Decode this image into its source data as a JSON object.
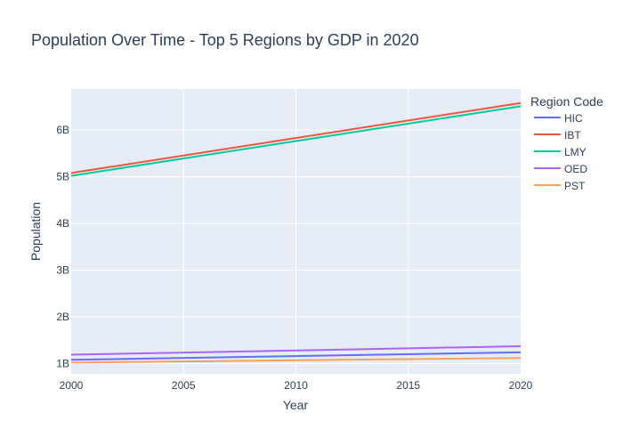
{
  "chart_data": {
    "type": "line",
    "title": "Population Over Time - Top 5 Regions by GDP in 2020",
    "xlabel": "Year",
    "ylabel": "Population",
    "xlim": [
      2000,
      2020
    ],
    "ylim": [
      780000000,
      6880000000
    ],
    "x_ticks": [
      2000,
      2005,
      2010,
      2015,
      2020
    ],
    "x_tick_labels": [
      "2000",
      "2005",
      "2010",
      "2015",
      "2020"
    ],
    "y_ticks": [
      1000000000,
      2000000000,
      3000000000,
      4000000000,
      5000000000,
      6000000000
    ],
    "y_tick_labels": [
      "1B",
      "2B",
      "3B",
      "4B",
      "5B",
      "6B"
    ],
    "legend": {
      "title": "Region Code",
      "placement": "right"
    },
    "plot_background": "#e5ecf6",
    "grid": true,
    "x": [
      2000,
      2020
    ],
    "series": [
      {
        "name": "HIC",
        "color": "#636efa",
        "values": [
          1080000000,
          1240000000
        ]
      },
      {
        "name": "IBT",
        "color": "#ef553b",
        "values": [
          5080000000,
          6580000000
        ]
      },
      {
        "name": "LMY",
        "color": "#00cc96",
        "values": [
          5020000000,
          6510000000
        ]
      },
      {
        "name": "OED",
        "color": "#ab63fa",
        "values": [
          1190000000,
          1370000000
        ]
      },
      {
        "name": "PST",
        "color": "#ffa15a",
        "values": [
          1020000000,
          1120000000
        ]
      }
    ]
  }
}
